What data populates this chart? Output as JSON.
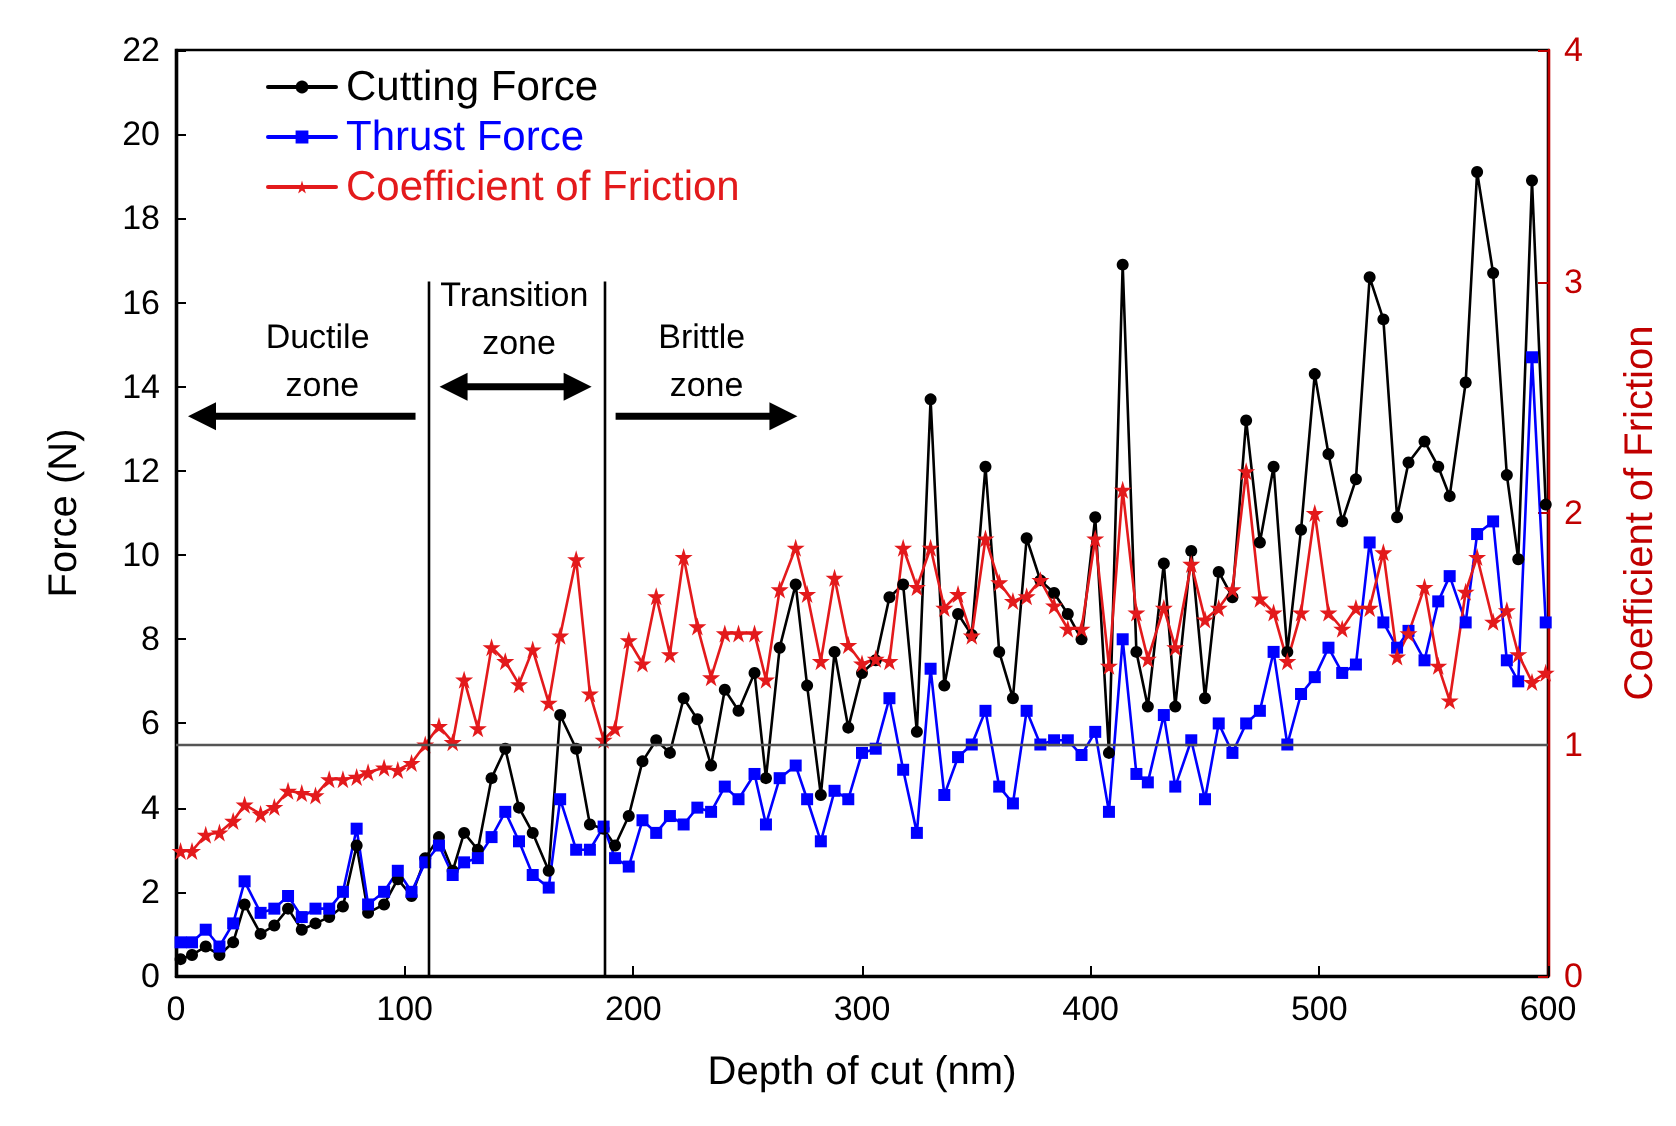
{
  "chart_data": {
    "type": "line",
    "xlabel": "Depth of cut (nm)",
    "ylabel": "Force (N)",
    "y2label": "Coefficient of Friction",
    "x": [
      2,
      7,
      13,
      19,
      25,
      30,
      37,
      43,
      49,
      55,
      61,
      67,
      73,
      79,
      84,
      91,
      97,
      103,
      109,
      115,
      121,
      126,
      132,
      138,
      144,
      150,
      156,
      163,
      168,
      175,
      181,
      187,
      192,
      198,
      204,
      210,
      216,
      222,
      228,
      234,
      240,
      246,
      253,
      258,
      264,
      271,
      276,
      282,
      288,
      294,
      300,
      306,
      312,
      318,
      324,
      330,
      336,
      342,
      348,
      354,
      360,
      366,
      372,
      378,
      384,
      390,
      396,
      402,
      408,
      414,
      420,
      425,
      432,
      437,
      444,
      450,
      456,
      462,
      468,
      474,
      480,
      486,
      492,
      498,
      504,
      510,
      516,
      522,
      528,
      534,
      539,
      546,
      552,
      557,
      564,
      569,
      576,
      582,
      587,
      593,
      599
    ],
    "series": [
      {
        "name": "Cutting Force",
        "color": "#000000",
        "marker": "circle",
        "values": [
          0.4,
          0.5,
          0.7,
          0.5,
          0.8,
          1.7,
          1.0,
          1.2,
          1.6,
          1.1,
          1.25,
          1.4,
          1.65,
          3.1,
          1.5,
          1.7,
          2.3,
          1.9,
          2.8,
          3.3,
          2.5,
          3.4,
          3.0,
          4.7,
          5.4,
          4.0,
          3.4,
          2.5,
          6.2,
          5.4,
          3.6,
          3.5,
          3.1,
          3.8,
          5.1,
          5.6,
          5.3,
          6.6,
          6.1,
          5.0,
          6.8,
          6.3,
          7.2,
          4.7,
          7.8,
          9.3,
          6.9,
          4.3,
          7.7,
          5.9,
          7.2,
          7.5,
          9.0,
          9.3,
          5.8,
          13.7,
          6.9,
          8.6,
          8.1,
          12.1,
          7.7,
          6.6,
          10.4,
          9.4,
          9.1,
          8.6,
          8.0,
          10.9,
          5.3,
          16.9,
          7.7,
          6.4,
          9.8,
          6.4,
          10.1,
          6.6,
          9.6,
          9.0,
          13.2,
          10.3,
          12.1,
          7.7,
          10.6,
          14.3,
          12.4,
          10.8,
          11.8,
          16.6,
          15.6,
          10.9,
          12.2,
          12.7,
          12.1,
          11.4,
          14.1,
          19.1,
          16.7,
          11.9,
          9.9,
          18.9,
          11.2
        ]
      },
      {
        "name": "Thrust Force",
        "color": "#0000ff",
        "marker": "square",
        "values": [
          0.8,
          0.8,
          1.1,
          0.7,
          1.25,
          2.25,
          1.5,
          1.6,
          1.9,
          1.4,
          1.6,
          1.6,
          2.0,
          3.5,
          1.7,
          2.0,
          2.5,
          2.0,
          2.7,
          3.1,
          2.4,
          2.7,
          2.8,
          3.3,
          3.9,
          3.2,
          2.4,
          2.1,
          4.2,
          3.0,
          3.0,
          3.55,
          2.8,
          2.6,
          3.7,
          3.4,
          3.8,
          3.6,
          4.0,
          3.9,
          4.5,
          4.2,
          4.8,
          3.6,
          4.7,
          5.0,
          4.2,
          3.2,
          4.4,
          4.2,
          5.3,
          5.4,
          6.6,
          4.9,
          3.4,
          7.3,
          4.3,
          5.2,
          5.5,
          6.3,
          4.5,
          4.1,
          6.3,
          5.5,
          5.6,
          5.6,
          5.25,
          5.8,
          3.9,
          8.0,
          4.8,
          4.6,
          6.2,
          4.5,
          5.6,
          4.2,
          6.0,
          5.3,
          6.0,
          6.3,
          7.7,
          5.5,
          6.7,
          7.1,
          7.8,
          7.2,
          7.4,
          10.3,
          8.4,
          7.8,
          8.2,
          7.5,
          8.9,
          9.5,
          8.4,
          10.5,
          10.8,
          7.5,
          7.0,
          14.7,
          8.4
        ]
      },
      {
        "name": "Coefficient of Friction",
        "color": "#e31a1c",
        "marker": "star",
        "axis": "y2",
        "values": [
          0.54,
          0.54,
          0.61,
          0.62,
          0.67,
          0.74,
          0.7,
          0.73,
          0.8,
          0.79,
          0.78,
          0.85,
          0.85,
          0.86,
          0.88,
          0.9,
          0.89,
          0.92,
          1.0,
          1.08,
          1.01,
          1.28,
          1.07,
          1.42,
          1.36,
          1.26,
          1.41,
          1.18,
          1.47,
          1.8,
          1.22,
          1.02,
          1.07,
          1.45,
          1.35,
          1.64,
          1.39,
          1.81,
          1.51,
          1.29,
          1.48,
          1.48,
          1.48,
          1.28,
          1.67,
          1.85,
          1.65,
          1.36,
          1.72,
          1.43,
          1.35,
          1.37,
          1.36,
          1.85,
          1.68,
          1.85,
          1.59,
          1.65,
          1.47,
          1.89,
          1.7,
          1.62,
          1.64,
          1.71,
          1.6,
          1.5,
          1.5,
          1.89,
          1.34,
          2.1,
          1.57,
          1.37,
          1.59,
          1.42,
          1.78,
          1.54,
          1.59,
          1.67,
          2.18,
          1.63,
          1.57,
          1.36,
          1.57,
          2.0,
          1.57,
          1.5,
          1.59,
          1.59,
          1.83,
          1.38,
          1.48,
          1.68,
          1.34,
          1.19,
          1.66,
          1.81,
          1.53,
          1.58,
          1.39,
          1.27,
          1.31
        ]
      }
    ],
    "xlim": [
      0,
      600
    ],
    "xticks": [
      0,
      100,
      200,
      300,
      400,
      500,
      600
    ],
    "ylim": [
      0,
      22
    ],
    "yticks": [
      0,
      2,
      4,
      6,
      8,
      10,
      12,
      14,
      16,
      18,
      20,
      22
    ],
    "y2lim": [
      0,
      4
    ],
    "y2ticks": [
      0,
      1,
      2,
      3,
      4
    ],
    "ref_lines": [
      {
        "axis": "y2",
        "value": 1,
        "color": "#555555"
      },
      {
        "axis": "x",
        "value": 110,
        "color": "#000000"
      },
      {
        "axis": "x",
        "value": 187,
        "color": "#000000"
      }
    ],
    "annotations": [
      "Ductile zone",
      "Transition zone",
      "Brittle zone"
    ],
    "legend": "top left",
    "grid": false,
    "line_style": "solid"
  }
}
